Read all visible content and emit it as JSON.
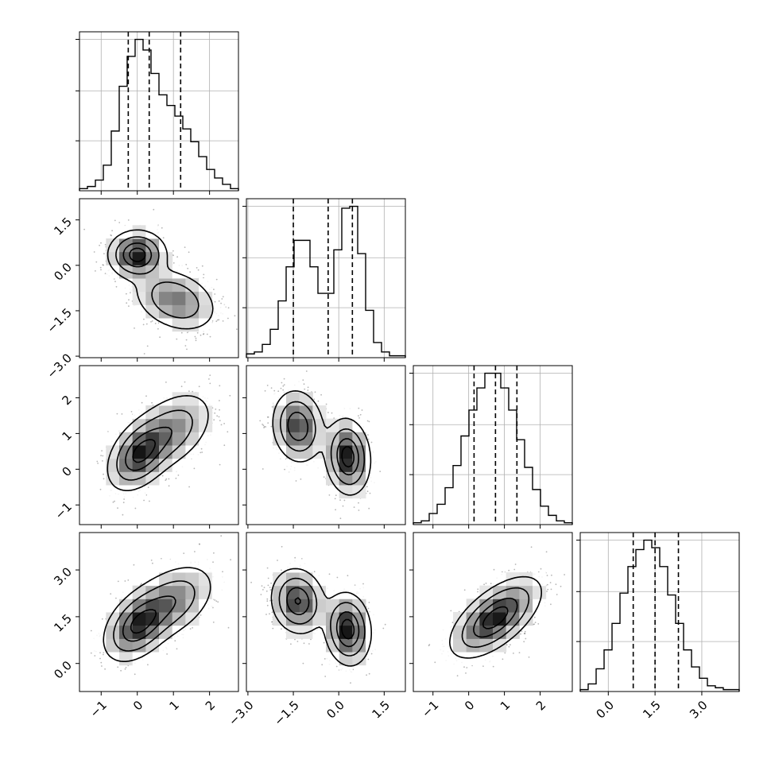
{
  "chart_data": {
    "type": "corner",
    "n_params": 4,
    "grid": true,
    "colors": {
      "line": "#000000",
      "grid": "#b0b0b0",
      "points": "#7a7a7a"
    },
    "params": [
      {
        "range": [
          -1.6,
          2.8
        ],
        "ticks": [
          -1,
          0,
          1,
          2
        ],
        "tick_labels": [
          "−1",
          "0",
          "1",
          "2"
        ],
        "quantiles": [
          -0.25,
          0.33,
          1.2
        ],
        "hist": [
          1,
          2,
          5,
          12,
          28,
          49,
          63,
          71,
          66,
          55,
          45,
          40,
          35,
          29,
          23,
          16,
          10,
          6,
          3,
          1
        ]
      },
      {
        "range": [
          -3.05,
          2.2
        ],
        "ticks": [
          -3.0,
          -1.5,
          0.0,
          1.5
        ],
        "tick_labels": [
          "−3.0",
          "−1.5",
          "0.0",
          "1.5"
        ],
        "quantiles": [
          -1.5,
          -0.35,
          0.45
        ],
        "hist": [
          2,
          3,
          7,
          15,
          30,
          48,
          62,
          62,
          48,
          34,
          34,
          57,
          79,
          80,
          55,
          25,
          8,
          3,
          1,
          1
        ]
      },
      {
        "range": [
          -1.55,
          2.9
        ],
        "ticks": [
          -1,
          0,
          1,
          2
        ],
        "tick_labels": [
          "−1",
          "0",
          "1",
          "2"
        ],
        "quantiles": [
          0.15,
          0.75,
          1.35
        ],
        "hist": [
          1,
          2,
          6,
          11,
          20,
          32,
          48,
          62,
          74,
          82,
          82,
          74,
          62,
          46,
          31,
          19,
          10,
          5,
          2,
          1
        ]
      },
      {
        "range": [
          -0.9,
          4.2
        ],
        "ticks": [
          0.0,
          1.5,
          3.0
        ],
        "tick_labels": [
          "0.0",
          "1.5",
          "3.0"
        ],
        "quantiles": [
          0.8,
          1.5,
          2.25
        ],
        "hist": [
          1,
          4,
          12,
          22,
          36,
          52,
          66,
          75,
          80,
          76,
          66,
          51,
          36,
          22,
          13,
          7,
          3,
          2,
          1,
          1
        ]
      }
    ],
    "pairs": [
      {
        "x": 0,
        "y": 1,
        "components": [
          {
            "mx": 0.0,
            "my": 0.35,
            "sx": 0.38,
            "sy": 0.38,
            "r": 0.0,
            "w": 0.48
          },
          {
            "mx": 1.05,
            "my": -1.15,
            "sx": 0.55,
            "sy": 0.5,
            "r": -0.3,
            "w": 0.52
          }
        ]
      },
      {
        "x": 0,
        "y": 2,
        "components": [
          {
            "mx": 0.05,
            "my": 0.4,
            "sx": 0.42,
            "sy": 0.48,
            "r": 0.4,
            "w": 0.5
          },
          {
            "mx": 0.9,
            "my": 1.05,
            "sx": 0.58,
            "sy": 0.55,
            "r": 0.45,
            "w": 0.5
          }
        ]
      },
      {
        "x": 1,
        "y": 2,
        "components": [
          {
            "mx": -1.35,
            "my": 1.2,
            "sx": 0.4,
            "sy": 0.48,
            "r": -0.1,
            "w": 0.48
          },
          {
            "mx": 0.3,
            "my": 0.35,
            "sx": 0.35,
            "sy": 0.5,
            "r": -0.1,
            "w": 0.52
          }
        ]
      },
      {
        "x": 0,
        "y": 3,
        "components": [
          {
            "mx": 0.0,
            "my": 1.2,
            "sx": 0.45,
            "sy": 0.55,
            "r": 0.4,
            "w": 0.5
          },
          {
            "mx": 0.9,
            "my": 1.95,
            "sx": 0.6,
            "sy": 0.6,
            "r": 0.45,
            "w": 0.5
          }
        ]
      },
      {
        "x": 1,
        "y": 3,
        "components": [
          {
            "mx": -1.35,
            "my": 2.0,
            "sx": 0.42,
            "sy": 0.5,
            "r": -0.1,
            "w": 0.48
          },
          {
            "mx": 0.3,
            "my": 1.1,
            "sx": 0.36,
            "sy": 0.55,
            "r": -0.1,
            "w": 0.52
          }
        ]
      },
      {
        "x": 2,
        "y": 3,
        "components": [
          {
            "mx": 0.55,
            "my": 1.25,
            "sx": 0.55,
            "sy": 0.55,
            "r": 0.55,
            "w": 0.55
          },
          {
            "mx": 1.0,
            "my": 1.75,
            "sx": 0.55,
            "sy": 0.55,
            "r": 0.55,
            "w": 0.45
          }
        ]
      }
    ]
  }
}
